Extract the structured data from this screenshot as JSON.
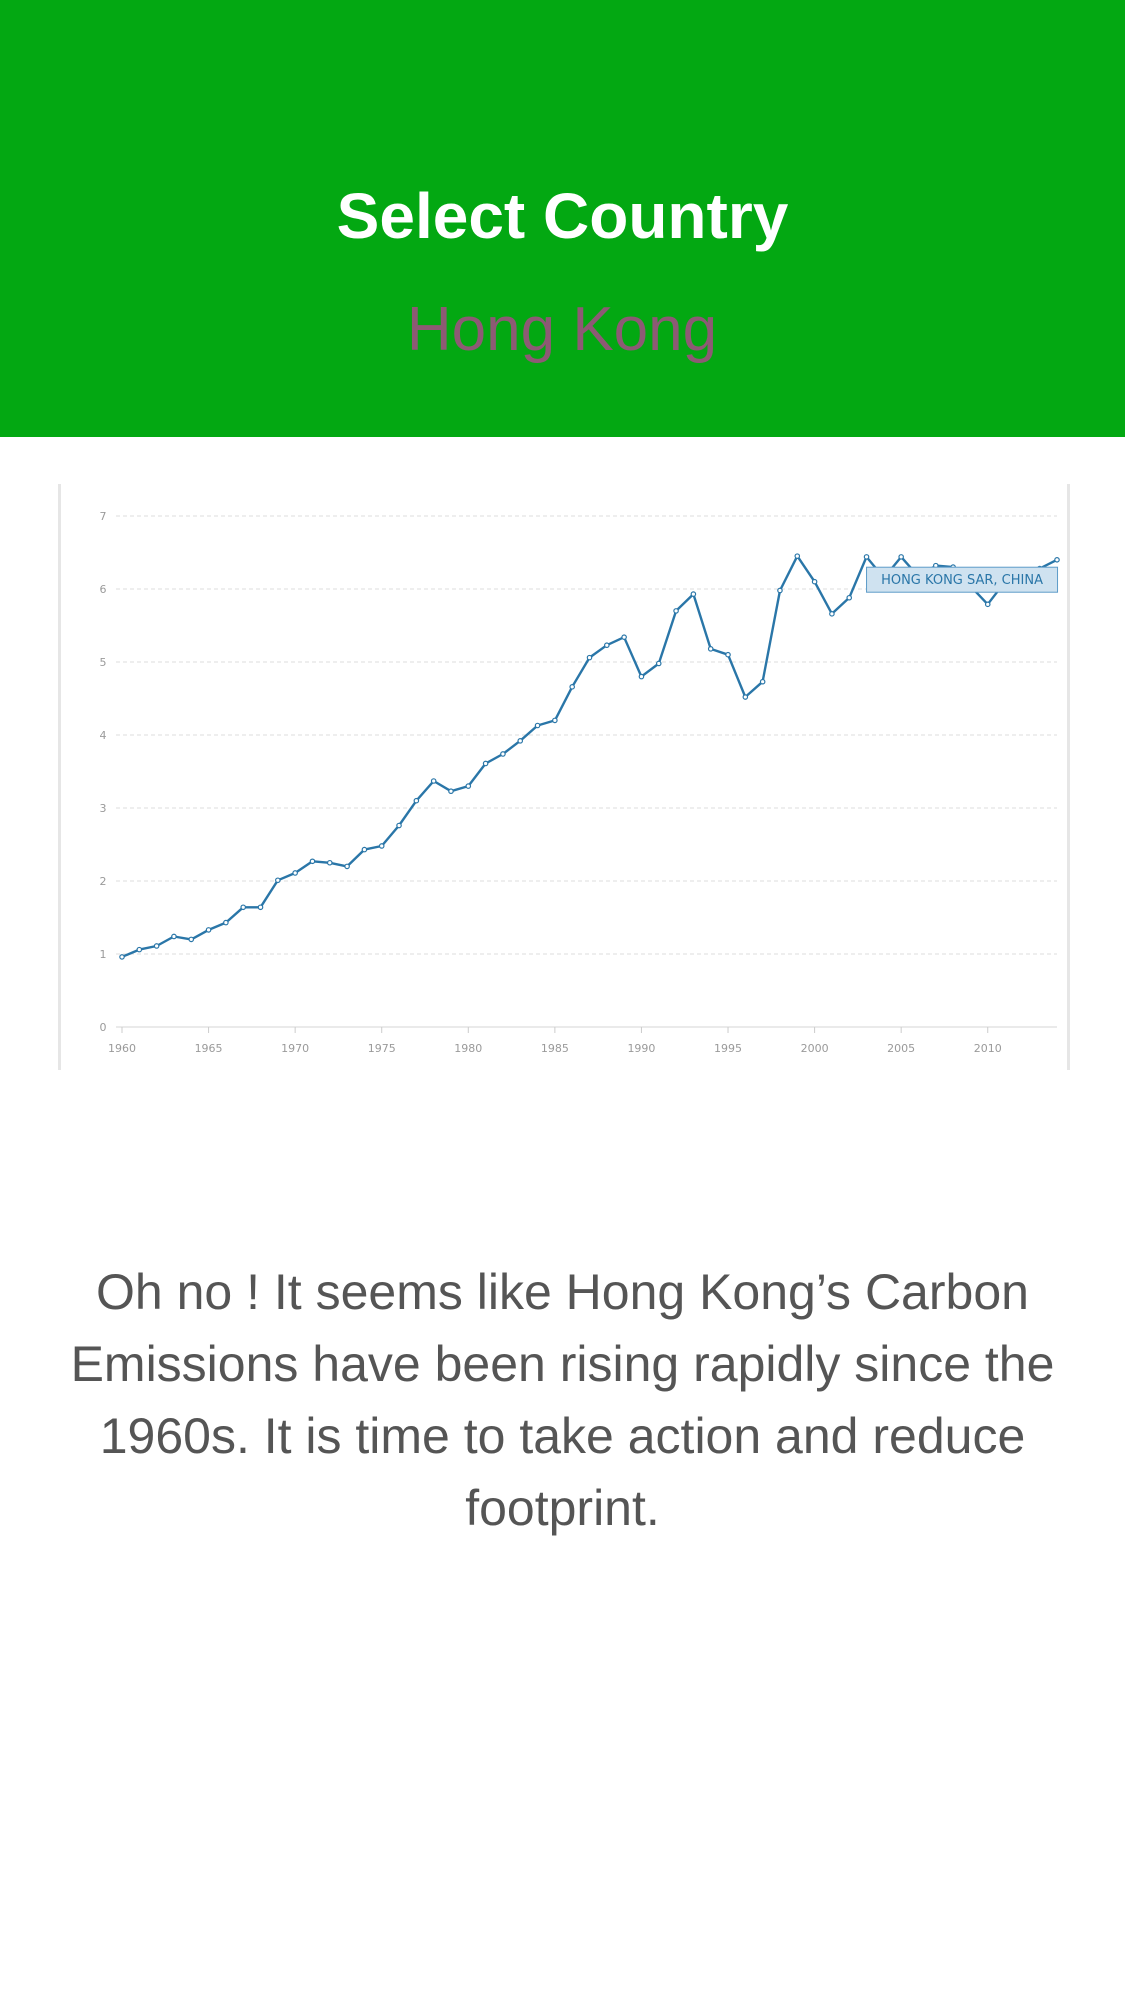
{
  "header": {
    "title": "Select Country",
    "selected_country": "Hong Kong",
    "background_color": "#03a812"
  },
  "chart_data": {
    "type": "line",
    "title": "",
    "xlabel": "",
    "ylabel": "",
    "xlim": [
      1960,
      2014
    ],
    "ylim": [
      0,
      7
    ],
    "x_ticks": [
      1960,
      1965,
      1970,
      1975,
      1980,
      1985,
      1990,
      1995,
      2000,
      2005,
      2010
    ],
    "y_ticks": [
      0,
      1,
      2,
      3,
      4,
      5,
      6,
      7
    ],
    "grid": true,
    "series": [
      {
        "name": "HONG KONG SAR, CHINA",
        "color": "#2a76a8",
        "x": [
          1960,
          1961,
          1962,
          1963,
          1964,
          1965,
          1966,
          1967,
          1968,
          1969,
          1970,
          1971,
          1972,
          1973,
          1974,
          1975,
          1976,
          1977,
          1978,
          1979,
          1980,
          1981,
          1982,
          1983,
          1984,
          1985,
          1986,
          1987,
          1988,
          1989,
          1990,
          1991,
          1992,
          1993,
          1994,
          1995,
          1996,
          1997,
          1998,
          1999,
          2000,
          2001,
          2002,
          2003,
          2004,
          2005,
          2006,
          2007,
          2008,
          2009,
          2010,
          2011,
          2012,
          2013,
          2014
        ],
        "y": [
          0.96,
          1.06,
          1.11,
          1.24,
          1.2,
          1.33,
          1.43,
          1.64,
          1.64,
          2.01,
          2.11,
          2.27,
          2.25,
          2.2,
          2.43,
          2.48,
          2.76,
          3.1,
          3.37,
          3.23,
          3.3,
          3.61,
          3.74,
          3.92,
          4.13,
          4.2,
          4.66,
          5.06,
          5.23,
          5.34,
          4.8,
          4.98,
          5.7,
          5.93,
          5.18,
          5.1,
          4.52,
          4.73,
          5.98,
          6.45,
          6.1,
          5.66,
          5.88,
          6.44,
          6.15,
          6.44,
          6.17,
          6.32,
          6.3,
          6.04,
          5.79,
          6.1,
          6.22,
          6.28,
          6.4
        ]
      }
    ],
    "tooltip_label": "HONG KONG SAR, CHINA"
  },
  "message": "Oh no ! It seems like Hong Kong’s Carbon Emissions have been rising rapidly since the 1960s. It is time to take action and reduce footprint."
}
